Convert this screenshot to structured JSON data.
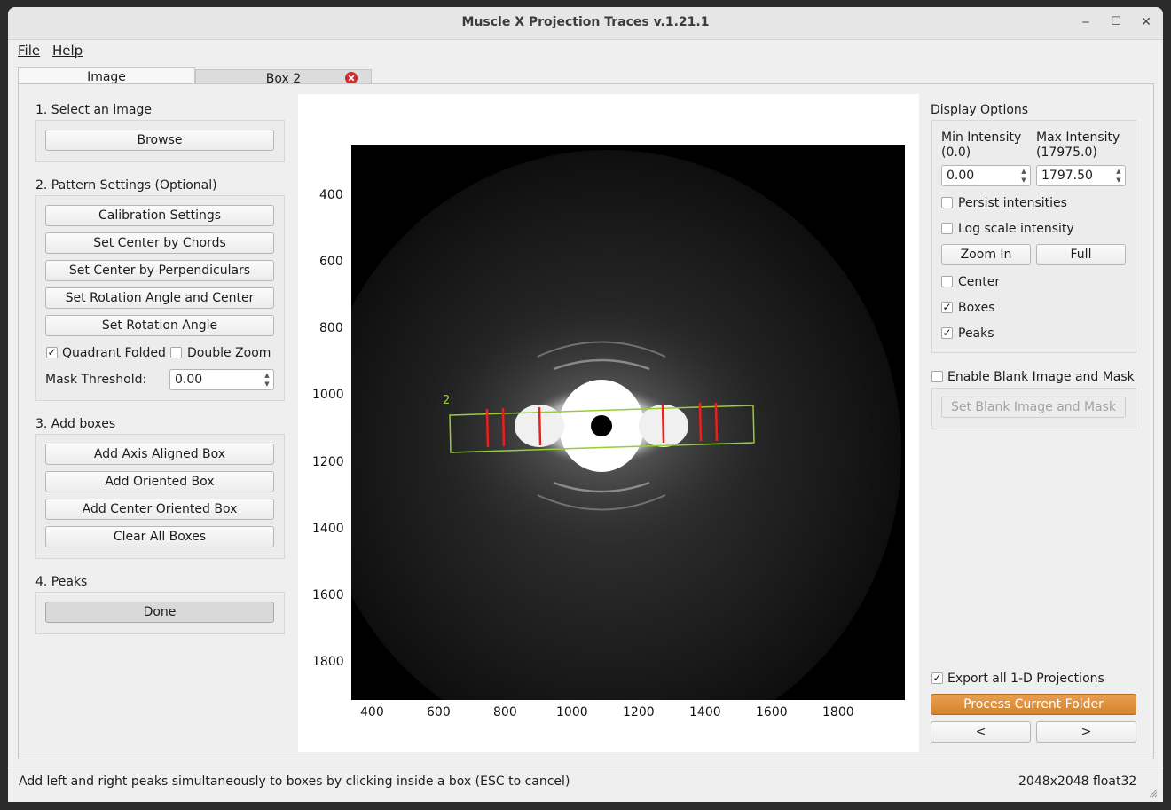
{
  "window": {
    "title": "Muscle X Projection Traces v.1.21.1",
    "minimize": "‒",
    "maximize": "☐",
    "close": "✕"
  },
  "menu": {
    "file": "File",
    "help": "Help"
  },
  "tabs": [
    {
      "label": "Image"
    },
    {
      "label": "Box 2"
    }
  ],
  "left": {
    "section1": "1. Select an image",
    "browse": "Browse",
    "section2": "2. Pattern Settings (Optional)",
    "calibration": "Calibration Settings",
    "chords": "Set Center by Chords",
    "perpendiculars": "Set Center by Perpendiculars",
    "rotation_center": "Set Rotation Angle and Center",
    "rotation": "Set Rotation Angle",
    "quadrant_folded": "Quadrant Folded",
    "quadrant_folded_checked": true,
    "double_zoom": "Double Zoom",
    "double_zoom_checked": false,
    "mask_threshold_label": "Mask Threshold:",
    "mask_threshold_value": "0.00",
    "section3": "3. Add boxes",
    "axis_box": "Add Axis Aligned Box",
    "oriented_box": "Add Oriented Box",
    "center_oriented_box": "Add Center Oriented Box",
    "clear_boxes": "Clear All Boxes",
    "section4": "4. Peaks",
    "done": "Done"
  },
  "plot": {
    "y_ticks": [
      "400",
      "600",
      "800",
      "1000",
      "1200",
      "1400",
      "1600",
      "1800"
    ],
    "x_ticks": [
      "400",
      "600",
      "800",
      "1000",
      "1200",
      "1400",
      "1600",
      "1800"
    ],
    "box_label": "2",
    "box_color": "#9acd32",
    "peak_color": "#e8201e"
  },
  "right": {
    "display_options": "Display Options",
    "min_intensity": "Min Intensity",
    "min_range": "(0.0)",
    "max_intensity": "Max Intensity",
    "max_range": "(17975.0)",
    "min_value": "0.00",
    "max_value": "1797.50",
    "persist": "Persist intensities",
    "persist_checked": false,
    "log_scale": "Log scale intensity",
    "log_scale_checked": false,
    "zoom_in": "Zoom In",
    "full": "Full",
    "center": "Center",
    "center_checked": false,
    "boxes": "Boxes",
    "boxes_checked": true,
    "peaks": "Peaks",
    "peaks_checked": true,
    "enable_blank": "Enable Blank Image and Mask",
    "enable_blank_checked": false,
    "set_blank": "Set Blank Image and Mask",
    "export": "Export all 1-D Projections",
    "export_checked": true,
    "process": "Process Current Folder",
    "prev": "<",
    "next": ">"
  },
  "status": {
    "message": "Add left and right peaks simultaneously to boxes by clicking inside a box (ESC to cancel)",
    "image_info": "2048x2048 float32"
  }
}
